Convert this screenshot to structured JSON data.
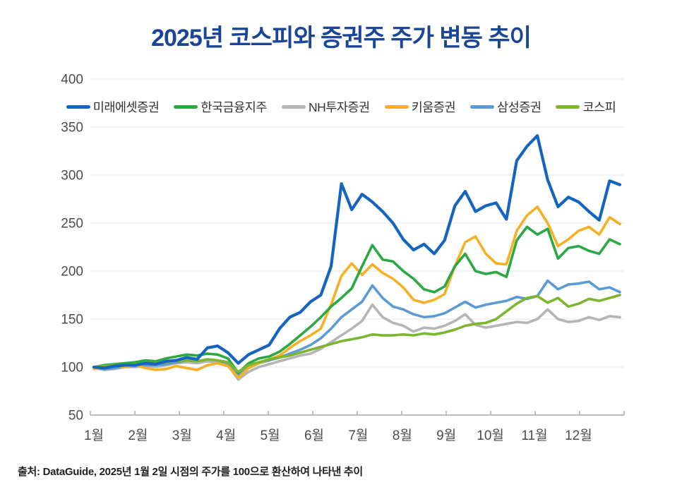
{
  "title": "2025년 코스피와 증권주 주가 변동 추이",
  "source_note": "출처: DataGuide, 2025년 1월 2일 시점의 주가를 100으로 환산하여 나타낸 추이",
  "colors": {
    "title": "#1b4596",
    "gridline": "#e4e4e4",
    "axis": "#a8a8a8",
    "tick_text": "#4c4c4c",
    "legend_text": "#333333",
    "background": "#ffffff"
  },
  "chart_data": {
    "type": "line",
    "title": "2025년 코스피와 증권주 주가 변동 추이",
    "xlabel": "",
    "ylabel": "",
    "ylim": [
      50,
      400
    ],
    "y_ticks": [
      50,
      100,
      150,
      200,
      250,
      300,
      350,
      400
    ],
    "x_categories": [
      "1월",
      "2월",
      "3월",
      "4월",
      "5월",
      "6월",
      "7월",
      "8월",
      "9월",
      "10월",
      "11월",
      "12월"
    ],
    "grid": true,
    "legend_position": "top",
    "index_base": "2025년 1월 2일 = 100",
    "sampling": "weekly",
    "emphasis": "미래에셋증권",
    "draw_order": [
      "NH투자증권",
      "삼성증권",
      "키움증권",
      "한국금융지주",
      "코스피",
      "미래에셋증권"
    ],
    "series": [
      {
        "name": "미래에셋증권",
        "color": "#1565c0",
        "values": [
          100,
          99,
          101,
          102,
          102,
          104,
          103,
          106,
          107,
          110,
          108,
          120,
          122,
          115,
          104,
          113,
          118,
          123,
          140,
          152,
          157,
          168,
          175,
          205,
          291,
          264,
          280,
          272,
          262,
          250,
          233,
          222,
          228,
          218,
          232,
          268,
          283,
          262,
          268,
          271,
          254,
          315,
          330,
          341,
          295,
          267,
          277,
          272,
          262,
          253,
          294,
          290
        ]
      },
      {
        "name": "한국금융지주",
        "color": "#2aa843",
        "values": [
          100,
          102,
          103,
          104,
          105,
          107,
          106,
          109,
          111,
          113,
          112,
          114,
          113,
          109,
          94,
          104,
          109,
          111,
          116,
          124,
          133,
          142,
          152,
          163,
          172,
          182,
          205,
          227,
          212,
          210,
          200,
          192,
          181,
          178,
          184,
          205,
          218,
          200,
          197,
          199,
          194,
          232,
          246,
          238,
          244,
          213,
          224,
          226,
          221,
          218,
          233,
          228
        ]
      },
      {
        "name": "NH투자증권",
        "color": "#b5b5b5",
        "values": [
          99,
          97,
          98,
          100,
          100,
          101,
          100,
          102,
          104,
          105,
          104,
          106,
          105,
          102,
          87,
          95,
          100,
          103,
          106,
          109,
          112,
          114,
          119,
          126,
          133,
          140,
          148,
          165,
          152,
          146,
          143,
          137,
          141,
          140,
          143,
          148,
          155,
          144,
          141,
          143,
          145,
          147,
          146,
          150,
          160,
          150,
          147,
          148,
          152,
          149,
          153,
          152
        ]
      },
      {
        "name": "키움증권",
        "color": "#f7b024",
        "values": [
          98,
          100,
          102,
          100,
          102,
          99,
          97,
          98,
          101,
          99,
          97,
          102,
          104,
          101,
          89,
          99,
          104,
          108,
          112,
          120,
          127,
          133,
          140,
          165,
          195,
          208,
          196,
          207,
          198,
          192,
          183,
          170,
          167,
          170,
          176,
          205,
          230,
          236,
          218,
          208,
          207,
          242,
          258,
          267,
          250,
          226,
          233,
          242,
          246,
          238,
          256,
          249
        ]
      },
      {
        "name": "삼성증권",
        "color": "#5b9bd5",
        "values": [
          100,
          98,
          99,
          101,
          101,
          102,
          102,
          103,
          105,
          107,
          106,
          108,
          107,
          104,
          91,
          100,
          104,
          107,
          110,
          114,
          118,
          123,
          130,
          140,
          152,
          160,
          168,
          185,
          172,
          163,
          160,
          155,
          152,
          153,
          156,
          162,
          168,
          162,
          165,
          167,
          169,
          173,
          171,
          174,
          190,
          181,
          186,
          187,
          189,
          181,
          183,
          178
        ]
      },
      {
        "name": "코스피",
        "color": "#7cb52e",
        "values": [
          100,
          101,
          102,
          102,
          103,
          104,
          104,
          105,
          106,
          107,
          106,
          108,
          107,
          105,
          95,
          102,
          105,
          108,
          110,
          112,
          115,
          118,
          121,
          124,
          127,
          129,
          131,
          134,
          133,
          133,
          134,
          133,
          135,
          134,
          136,
          139,
          143,
          145,
          146,
          150,
          158,
          166,
          172,
          174,
          167,
          172,
          163,
          166,
          171,
          169,
          172,
          175
        ]
      }
    ]
  }
}
